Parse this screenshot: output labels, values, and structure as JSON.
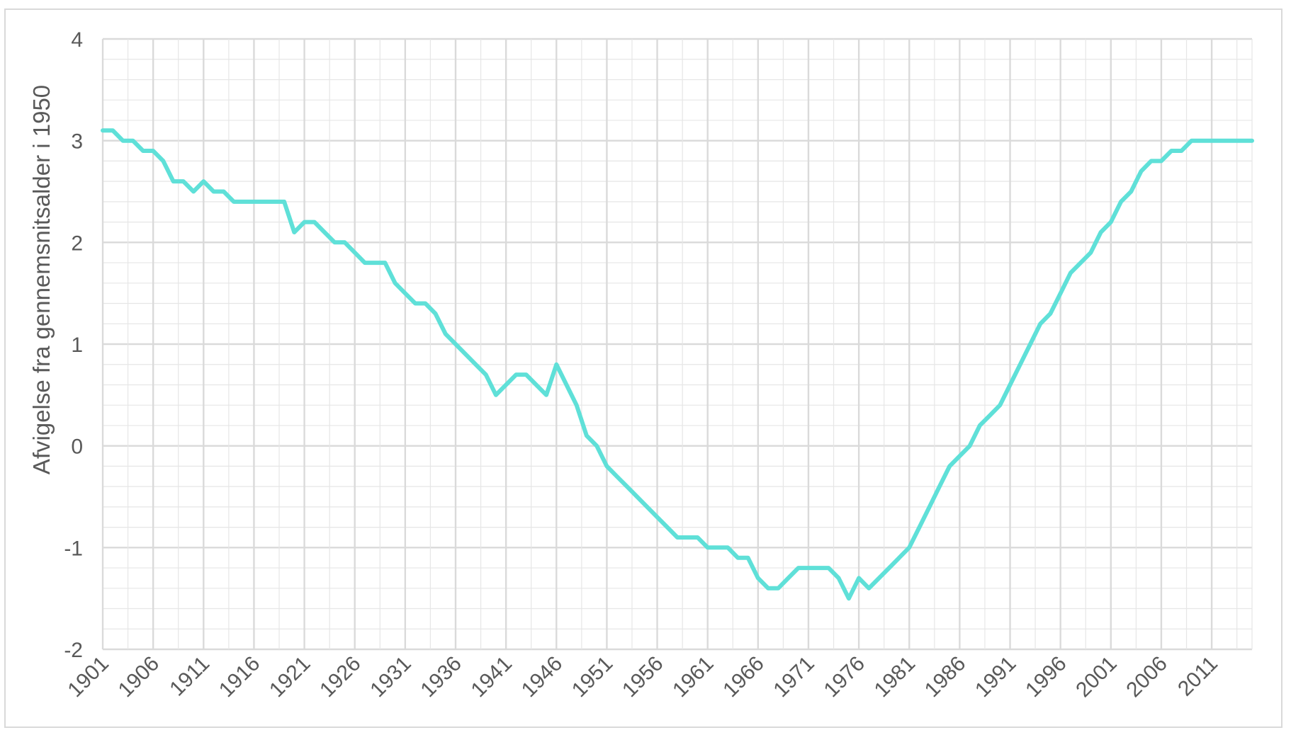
{
  "chart_data": {
    "type": "line",
    "title": "",
    "xlabel": "",
    "ylabel": "Afvigelse fra gennemsnitsalder i 1950",
    "ylim": [
      -2,
      4
    ],
    "xlim": [
      1901,
      2015
    ],
    "yticks": [
      -2,
      -1,
      0,
      1,
      2,
      3,
      4
    ],
    "ytick_labels": [
      "-2",
      "-1",
      "0",
      "1",
      "2",
      "3",
      "4"
    ],
    "xtick_labels": [
      "1901",
      "1906",
      "1911",
      "1916",
      "1921",
      "1926",
      "1931",
      "1936",
      "1941",
      "1946",
      "1951",
      "1956",
      "1961",
      "1966",
      "1971",
      "1976",
      "1981",
      "1986",
      "1991",
      "1996",
      "2001",
      "2006",
      "2011"
    ],
    "grid": true,
    "legend": "none",
    "colors": {
      "line": "#5fe0d8",
      "grid": "#e6e6e6",
      "major_grid": "#dadada",
      "frame": "#d9d9d9",
      "text": "#595959"
    },
    "series": [
      {
        "x": [
          1901,
          1902,
          1903,
          1904,
          1905,
          1906,
          1907,
          1908,
          1909,
          1910,
          1911,
          1912,
          1913,
          1914,
          1915,
          1916,
          1917,
          1918,
          1919,
          1920,
          1921,
          1922,
          1923,
          1924,
          1925,
          1926,
          1927,
          1928,
          1929,
          1930,
          1931,
          1932,
          1933,
          1934,
          1935,
          1936,
          1937,
          1938,
          1939,
          1940,
          1941,
          1942,
          1943,
          1944,
          1945,
          1946,
          1947,
          1948,
          1949,
          1950,
          1951,
          1952,
          1953,
          1954,
          1955,
          1956,
          1957,
          1958,
          1959,
          1960,
          1961,
          1962,
          1963,
          1964,
          1965,
          1966,
          1967,
          1968,
          1969,
          1970,
          1971,
          1972,
          1973,
          1974,
          1975,
          1976,
          1977,
          1978,
          1979,
          1980,
          1981,
          1982,
          1983,
          1984,
          1985,
          1986,
          1987,
          1988,
          1989,
          1990,
          1991,
          1992,
          1993,
          1994,
          1995,
          1996,
          1997,
          1998,
          1999,
          2000,
          2001,
          2002,
          2003,
          2004,
          2005,
          2006,
          2007,
          2008,
          2009,
          2010,
          2011,
          2012,
          2013,
          2014,
          2015
        ],
        "values": [
          3.1,
          3.1,
          3.0,
          3.0,
          2.9,
          2.9,
          2.8,
          2.6,
          2.6,
          2.5,
          2.6,
          2.5,
          2.5,
          2.4,
          2.4,
          2.4,
          2.4,
          2.4,
          2.4,
          2.1,
          2.2,
          2.2,
          2.1,
          2.0,
          2.0,
          1.9,
          1.8,
          1.8,
          1.8,
          1.6,
          1.5,
          1.4,
          1.4,
          1.3,
          1.1,
          1.0,
          0.9,
          0.8,
          0.7,
          0.5,
          0.6,
          0.7,
          0.7,
          0.6,
          0.5,
          0.8,
          0.6,
          0.4,
          0.1,
          0.0,
          -0.2,
          -0.3,
          -0.4,
          -0.5,
          -0.6,
          -0.7,
          -0.8,
          -0.9,
          -0.9,
          -0.9,
          -1.0,
          -1.0,
          -1.0,
          -1.1,
          -1.1,
          -1.3,
          -1.4,
          -1.4,
          -1.3,
          -1.2,
          -1.2,
          -1.2,
          -1.2,
          -1.3,
          -1.5,
          -1.3,
          -1.4,
          -1.3,
          -1.2,
          -1.1,
          -1.0,
          -0.8,
          -0.6,
          -0.4,
          -0.2,
          -0.1,
          0.0,
          0.2,
          0.3,
          0.4,
          0.6,
          0.8,
          1.0,
          1.2,
          1.3,
          1.5,
          1.7,
          1.8,
          1.9,
          2.1,
          2.2,
          2.4,
          2.5,
          2.7,
          2.8,
          2.8,
          2.9,
          2.9,
          3.0,
          3.0,
          3.0,
          3.0,
          3.0,
          3.0,
          3.0
        ]
      }
    ]
  }
}
